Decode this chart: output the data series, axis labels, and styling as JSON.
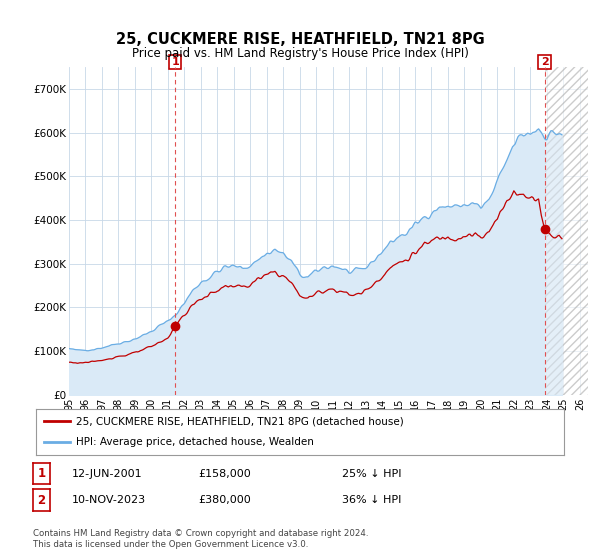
{
  "title": "25, CUCKMERE RISE, HEATHFIELD, TN21 8PG",
  "subtitle": "Price paid vs. HM Land Registry's House Price Index (HPI)",
  "legend_line1": "25, CUCKMERE RISE, HEATHFIELD, TN21 8PG (detached house)",
  "legend_line2": "HPI: Average price, detached house, Wealden",
  "annotation1_date": "12-JUN-2001",
  "annotation1_price": "£158,000",
  "annotation1_note": "25% ↓ HPI",
  "annotation2_date": "10-NOV-2023",
  "annotation2_price": "£380,000",
  "annotation2_note": "36% ↓ HPI",
  "footnote": "Contains HM Land Registry data © Crown copyright and database right 2024.\nThis data is licensed under the Open Government Licence v3.0.",
  "hpi_color": "#6aade4",
  "hpi_fill_color": "#daeaf7",
  "price_color": "#c00000",
  "dashed_color": "#e05050",
  "background_color": "#ffffff",
  "grid_color": "#c8d8e8",
  "ylim": [
    0,
    750000
  ],
  "yticks": [
    0,
    100000,
    200000,
    300000,
    400000,
    500000,
    600000,
    700000
  ],
  "ytick_labels": [
    "£0",
    "£100K",
    "£200K",
    "£300K",
    "£400K",
    "£500K",
    "£600K",
    "£700K"
  ],
  "ann1_x": 2001.44,
  "ann1_y": 158000,
  "ann2_x": 2023.86,
  "ann2_y": 380000,
  "xlim": [
    1995.0,
    2026.5
  ],
  "hatch_start": 2023.86
}
